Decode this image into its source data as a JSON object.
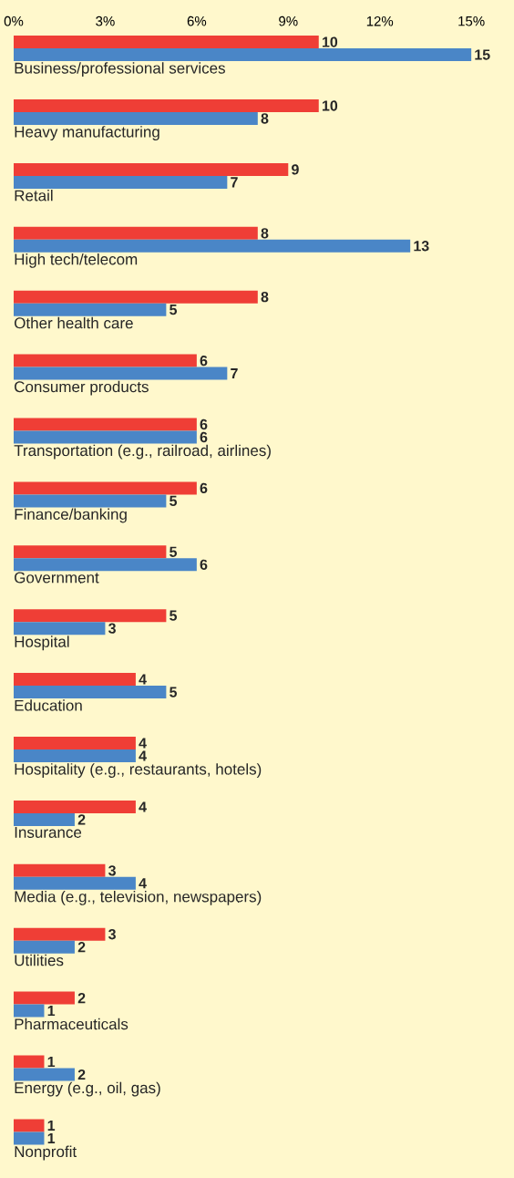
{
  "chart_data": {
    "type": "bar",
    "orientation": "horizontal",
    "data_labels": true,
    "categories": [
      "Business/professional services",
      "Heavy manufacturing",
      "Retail",
      "High tech/telecom",
      "Other health care",
      "Consumer products",
      "Transportation (e.g., railroad, airlines)",
      "Finance/banking",
      "Government",
      "Hospital",
      "Education",
      "Hospitality (e.g., restaurants, hotels)",
      "Insurance",
      "Media (e.g., television, newspapers)",
      "Utilities",
      "Pharmaceuticals",
      "Energy (e.g., oil, gas)",
      "Nonprofit"
    ],
    "series": [
      {
        "color": "#ef3e36",
        "values": [
          10,
          10,
          9,
          8,
          8,
          6,
          6,
          6,
          5,
          5,
          4,
          4,
          4,
          3,
          3,
          2,
          1,
          1
        ]
      },
      {
        "color": "#4a86c7",
        "values": [
          15,
          8,
          7,
          13,
          5,
          7,
          6,
          5,
          6,
          3,
          5,
          4,
          2,
          4,
          2,
          1,
          2,
          1
        ]
      }
    ],
    "xlim": [
      0,
      16.4
    ],
    "xticks": [
      {
        "value": 0,
        "label": "0%"
      },
      {
        "value": 3,
        "label": "3%"
      },
      {
        "value": 6,
        "label": "6%"
      },
      {
        "value": 9,
        "label": "9%"
      },
      {
        "value": 12,
        "label": "12%"
      },
      {
        "value": 15,
        "label": "15%"
      }
    ]
  }
}
